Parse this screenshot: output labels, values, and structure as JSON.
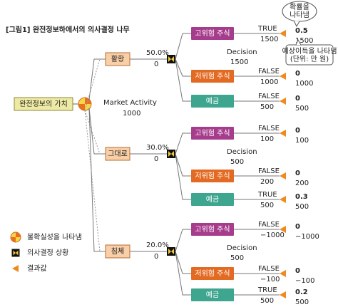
{
  "title": "[그림1] 완전정보하에서의 의사결정 나무",
  "root": {
    "label": "완전정보의 가치",
    "node_name": "Market Activity",
    "node_value": "1000"
  },
  "states": [
    {
      "label": "활황",
      "probability": "50.0%",
      "value": "0",
      "decision_name": "Decision",
      "decision_value": "1500",
      "options": [
        {
          "label": "고위험 주식",
          "flag": "TRUE",
          "value": "1500",
          "result_probability": "0.5",
          "result_value": "1500"
        },
        {
          "label": "저위험 주식",
          "flag": "FALSE",
          "value": "1000",
          "result_probability": "0",
          "result_value": "1000"
        },
        {
          "label": "예금",
          "flag": "FALSE",
          "value": "500",
          "result_probability": "0",
          "result_value": "500"
        }
      ]
    },
    {
      "label": "그대로",
      "probability": "30.0%",
      "value": "0",
      "decision_name": "Decision",
      "decision_value": "500",
      "options": [
        {
          "label": "고위험 주식",
          "flag": "FALSE",
          "value": "100",
          "result_probability": "0",
          "result_value": "100"
        },
        {
          "label": "저위험 주식",
          "flag": "FALSE",
          "value": "200",
          "result_probability": "0",
          "result_value": "200"
        },
        {
          "label": "예금",
          "flag": "TRUE",
          "value": "500",
          "result_probability": "0.3",
          "result_value": "500"
        }
      ]
    },
    {
      "label": "침체",
      "probability": "20.0%",
      "value": "0",
      "decision_name": "Decision",
      "decision_value": "500",
      "options": [
        {
          "label": "고위험 주식",
          "flag": "FALSE",
          "value": "−1000",
          "result_probability": "0",
          "result_value": "−1000"
        },
        {
          "label": "저위험 주식",
          "flag": "FALSE",
          "value": "−100",
          "result_probability": "0",
          "result_value": "−100"
        },
        {
          "label": "예금",
          "flag": "TRUE",
          "value": "500",
          "result_probability": "0.2",
          "result_value": "500"
        }
      ]
    }
  ],
  "callouts": {
    "probability": [
      "확률을",
      "나타냄"
    ],
    "payoff": [
      "예상이득을 나타냄",
      "(단위: 만 원)"
    ]
  },
  "legend": [
    "불확실성을 나타냄",
    "의사결정 상황",
    "결과값"
  ]
}
